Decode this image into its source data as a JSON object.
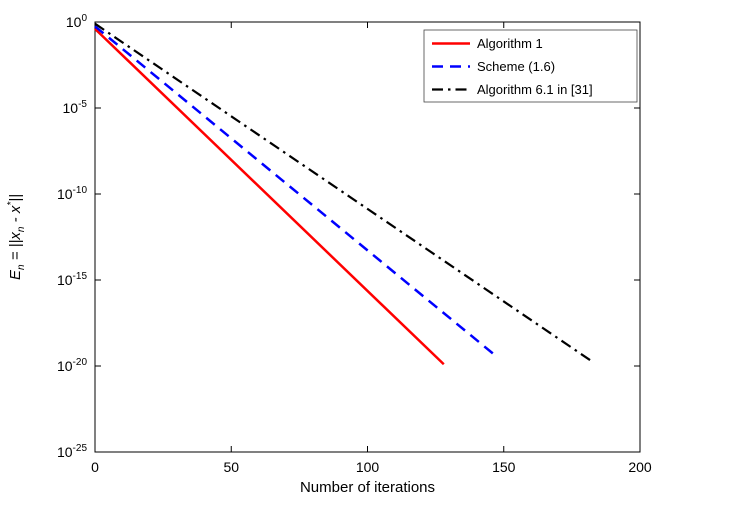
{
  "chart_data": {
    "type": "line",
    "title": "",
    "xlabel": "Number of iterations",
    "ylabel": "E_n = ||x_n - x*||",
    "ylabel_parts": [
      {
        "t": "E"
      },
      {
        "t": "n",
        "sub": true
      },
      {
        "t": " = ||"
      },
      {
        "t": "x"
      },
      {
        "t": "n",
        "sub": true
      },
      {
        "t": " - x"
      },
      {
        "t": "*",
        "sup": true
      },
      {
        "t": "||"
      }
    ],
    "x_axis_scale": "linear",
    "y_axis_scale": "log",
    "xlim": [
      0,
      200
    ],
    "ylim_exp": [
      -25,
      0
    ],
    "xticks": [
      0,
      50,
      100,
      150,
      200
    ],
    "ytick_base": "10",
    "ytick_exponents": [
      0,
      -5,
      -10,
      -15,
      -20,
      -25
    ],
    "grid": false,
    "legend_position": "top-right",
    "axis_color": "#000000",
    "series": [
      {
        "name": "Algorithm 1",
        "color": "#ff0000",
        "style": "solid",
        "width": 2.5,
        "points": [
          [
            0,
            -0.4
          ],
          [
            128,
            -19.9
          ]
        ]
      },
      {
        "name": "Scheme (1.6)",
        "color": "#0000ff",
        "style": "dashed",
        "width": 2.5,
        "points": [
          [
            0,
            -0.25
          ],
          [
            147,
            -19.4
          ]
        ]
      },
      {
        "name": "Algorithm 6.1 in [31]",
        "color": "#000000",
        "style": "dashdot",
        "width": 2.2,
        "points": [
          [
            0,
            -0.1
          ],
          [
            183,
            -19.8
          ]
        ]
      }
    ]
  }
}
